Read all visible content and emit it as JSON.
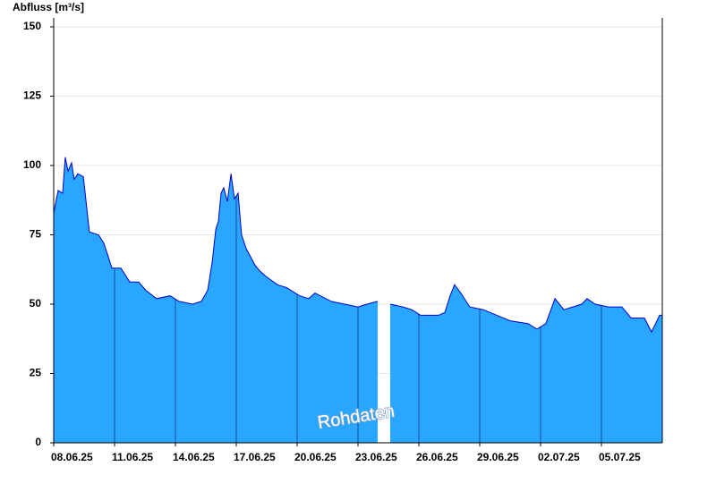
{
  "chart_data": {
    "type": "area",
    "y_axis_label": "Abfluss [m³/s]",
    "annotation": "Rohdaten",
    "x": [
      0,
      0.22,
      0.44,
      0.57,
      0.71,
      0.88,
      1.01,
      1.19,
      1.46,
      1.76,
      2.21,
      2.47,
      2.65,
      2.87,
      3.31,
      3.75,
      4.19,
      4.54,
      5.07,
      5.74,
      6.18,
      6.84,
      7.28,
      7.59,
      7.81,
      7.99,
      8.12,
      8.25,
      8.38,
      8.56,
      8.74,
      8.91,
      9.09,
      9.26,
      9.49,
      9.93,
      10.15,
      10.46,
      11.03,
      11.47,
      12.13,
      12.57,
      12.88,
      13.68,
      14.34,
      15.0,
      15.44,
      15.97,
      16.2,
      16.59,
      17.21,
      17.65,
      18.09,
      18.97,
      19.28,
      19.54,
      19.76,
      20.07,
      20.51,
      21.18,
      21.84,
      22.5,
      23.38,
      23.82,
      24.26,
      24.71,
      25.15,
      25.59,
      26.03,
      26.29,
      26.69,
      27.35,
      28.01,
      28.46,
      29.12,
      29.47,
      29.87,
      30
    ],
    "series": [
      {
        "name": "Abfluss",
        "color": "#29a6ff",
        "line_color": "#0000cc",
        "values": [
          83,
          91,
          90,
          103,
          98,
          101,
          95,
          97,
          96,
          76,
          75,
          72,
          68,
          63,
          63,
          58,
          58,
          55,
          52,
          53,
          51,
          50,
          51,
          55,
          65,
          77,
          80,
          90,
          92,
          87,
          97,
          88,
          90,
          75,
          70,
          64,
          62,
          60,
          57,
          56,
          53,
          52,
          54,
          51,
          50,
          49,
          50,
          51,
          null,
          50,
          49,
          48,
          46,
          46,
          47,
          53,
          57,
          54,
          49,
          48,
          46,
          44,
          43,
          41,
          43,
          52,
          48,
          49,
          50,
          52,
          50,
          49,
          49,
          45,
          45,
          40,
          46,
          46
        ]
      }
    ],
    "xlim": [
      0,
      30
    ],
    "xticks": [
      {
        "value": 0,
        "label": "08.06.25"
      },
      {
        "value": 3,
        "label": "11.06.25"
      },
      {
        "value": 6,
        "label": "14.06.25"
      },
      {
        "value": 9,
        "label": "17.06.25"
      },
      {
        "value": 12,
        "label": "20.06.25"
      },
      {
        "value": 15,
        "label": "23.06.25"
      },
      {
        "value": 18,
        "label": "26.06.25"
      },
      {
        "value": 21,
        "label": "29.06.25"
      },
      {
        "value": 24,
        "label": "02.07.25"
      },
      {
        "value": 27,
        "label": "05.07.25"
      }
    ],
    "ylim": [
      0,
      150
    ],
    "yticks": [
      0,
      25,
      50,
      75,
      100,
      125,
      150
    ],
    "grid": true
  }
}
